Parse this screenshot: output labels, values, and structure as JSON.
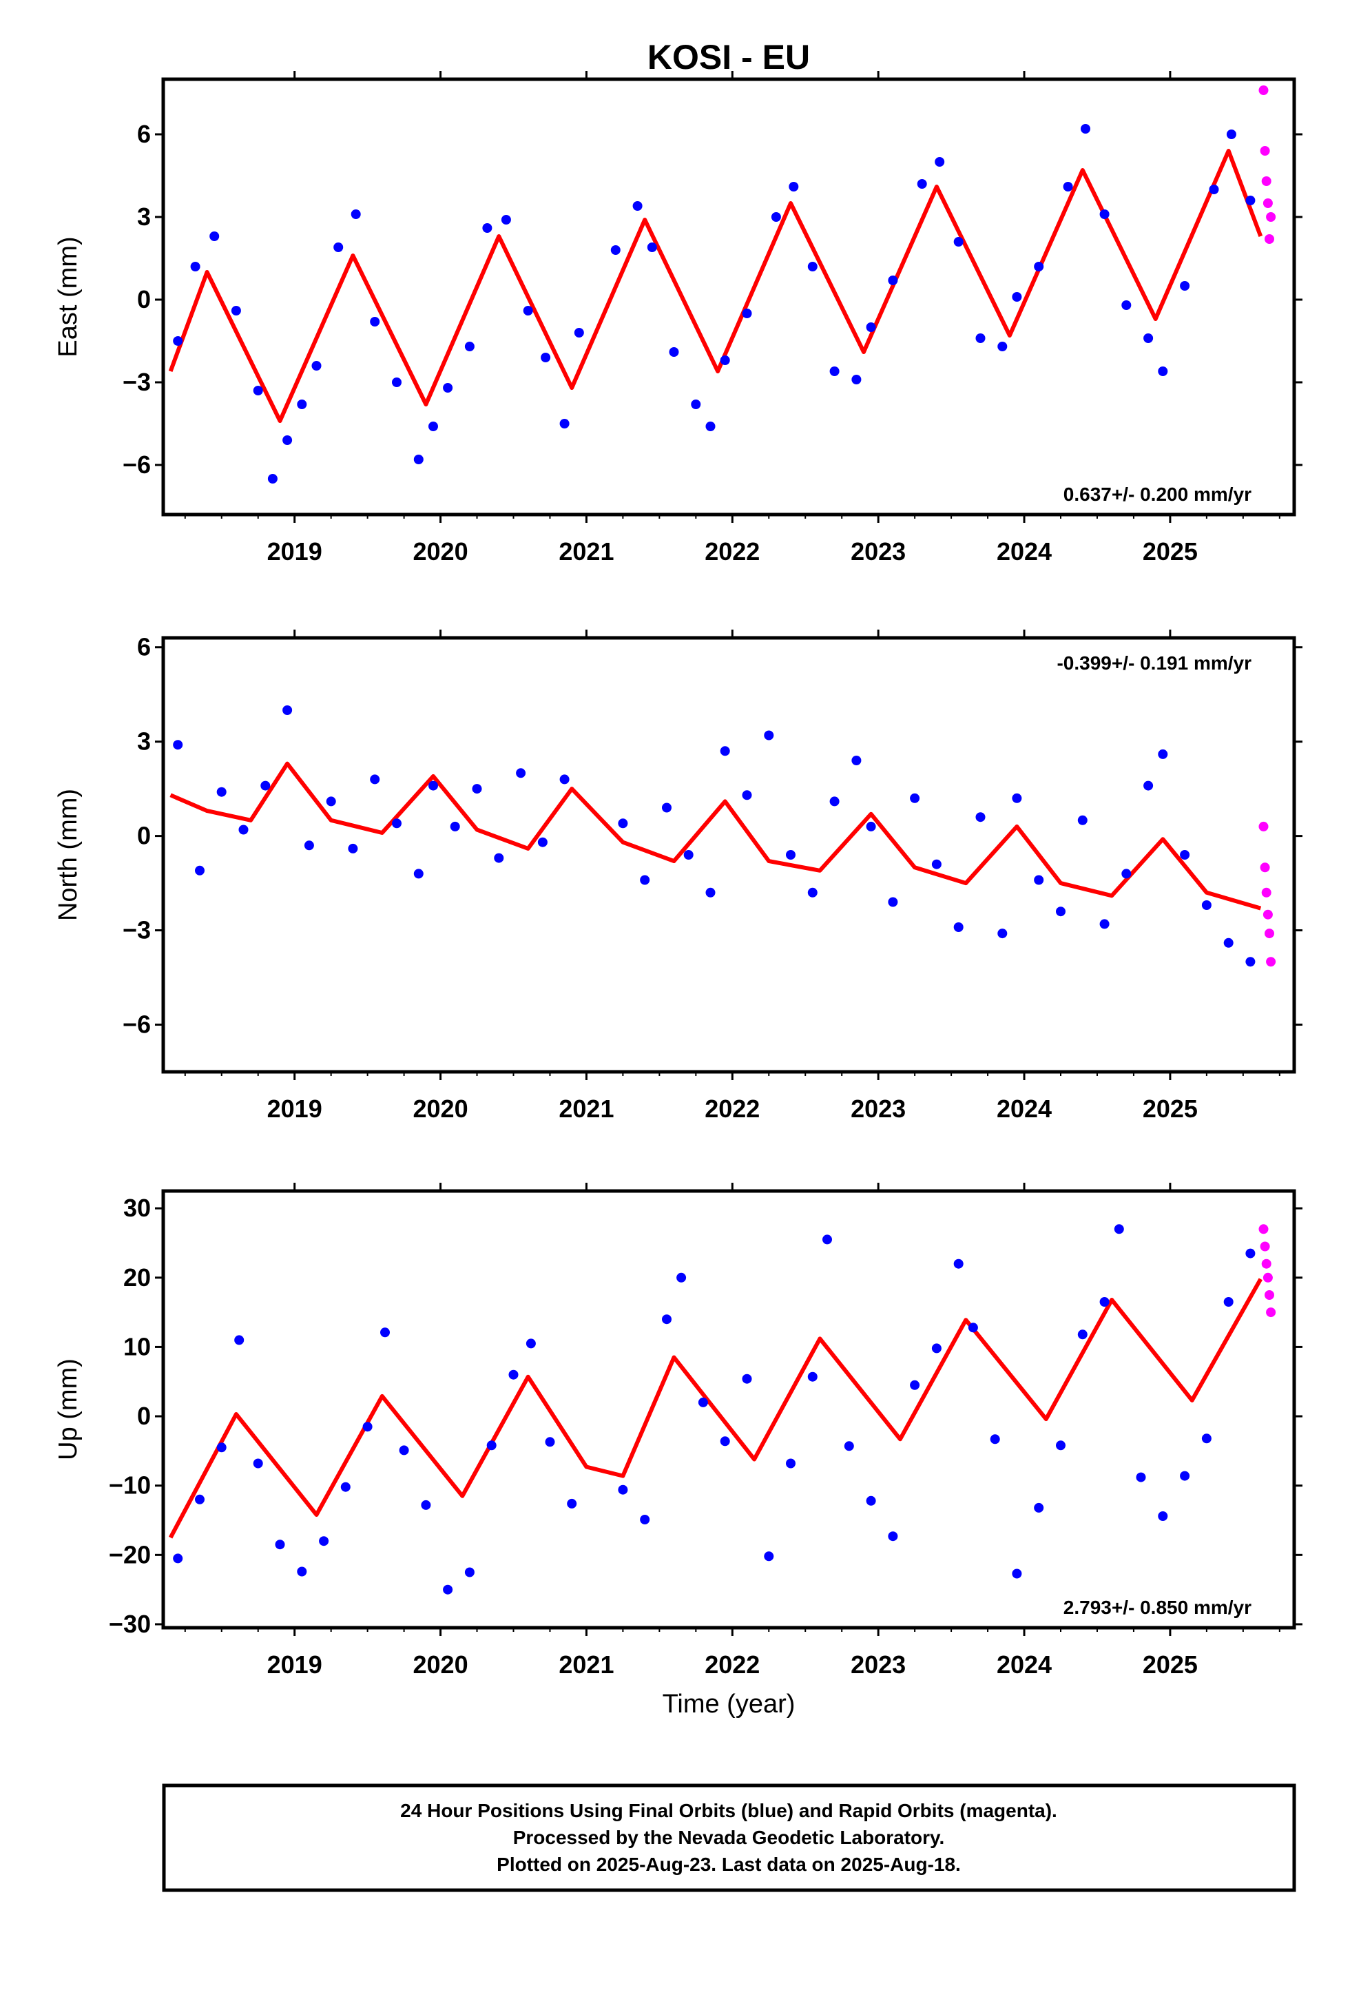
{
  "title": "KOSI - EU",
  "xlabel": "Time (year)",
  "caption": [
    "24 Hour Positions Using Final Orbits (blue) and Rapid Orbits (magenta).",
    "Processed by the Nevada Geodetic Laboratory.",
    "Plotted on 2025-Aug-23. Last data on 2025-Aug-18."
  ],
  "colors": {
    "final": "#0000ff",
    "rapid": "#ff00ff",
    "model": "#ff0000",
    "frame": "#000000"
  },
  "chart_data": [
    {
      "type": "scatter",
      "component": "east",
      "ylabel": "East (mm)",
      "rate": "0.637+/- 0.200 mm/yr",
      "rate_position": "bottom-right",
      "xlim": [
        2018.1,
        2025.85
      ],
      "ylim": [
        -7.8,
        8.0
      ],
      "x_ticks": [
        2019,
        2020,
        2021,
        2022,
        2023,
        2024,
        2025
      ],
      "y_ticks": [
        -6,
        -3,
        0,
        3,
        6
      ],
      "y_tick_labels": [
        "−6",
        "−3",
        "0",
        "3",
        "6"
      ],
      "series": [
        {
          "role": "model",
          "x": [
            2018.15,
            2018.4,
            2018.9,
            2019.4,
            2019.9,
            2020.4,
            2020.9,
            2021.4,
            2021.9,
            2022.4,
            2022.9,
            2023.4,
            2023.9,
            2024.4,
            2024.9,
            2025.4,
            2025.62
          ],
          "values": [
            -2.6,
            1.0,
            -4.4,
            1.6,
            -3.8,
            2.3,
            -3.2,
            2.9,
            -2.6,
            3.5,
            -1.9,
            4.1,
            -1.3,
            4.7,
            -0.7,
            5.4,
            2.3
          ]
        },
        {
          "role": "final",
          "x": [
            2018.2,
            2018.32,
            2018.45,
            2018.6,
            2018.75,
            2018.85,
            2018.95,
            2019.05,
            2019.15,
            2019.3,
            2019.42,
            2019.55,
            2019.7,
            2019.85,
            2019.95,
            2020.05,
            2020.2,
            2020.32,
            2020.45,
            2020.6,
            2020.72,
            2020.85,
            2020.95,
            2021.2,
            2021.35,
            2021.45,
            2021.6,
            2021.75,
            2021.85,
            2021.95,
            2022.1,
            2022.3,
            2022.42,
            2022.55,
            2022.7,
            2022.85,
            2022.95,
            2023.1,
            2023.3,
            2023.42,
            2023.55,
            2023.7,
            2023.85,
            2023.95,
            2024.1,
            2024.3,
            2024.42,
            2024.55,
            2024.7,
            2024.85,
            2024.95,
            2025.1,
            2025.3,
            2025.42,
            2025.55
          ],
          "values": [
            -1.5,
            1.2,
            2.3,
            -0.4,
            -3.3,
            -6.5,
            -5.1,
            -3.8,
            -2.4,
            1.9,
            3.1,
            -0.8,
            -3.0,
            -5.8,
            -4.6,
            -3.2,
            -1.7,
            2.6,
            2.9,
            -0.4,
            -2.1,
            -4.5,
            -1.2,
            1.8,
            3.4,
            1.9,
            -1.9,
            -3.8,
            -4.6,
            -2.2,
            -0.5,
            3.0,
            4.1,
            1.2,
            -2.6,
            -2.9,
            -1.0,
            0.7,
            4.2,
            5.0,
            2.1,
            -1.4,
            -1.7,
            0.1,
            1.2,
            4.1,
            6.2,
            3.1,
            -0.2,
            -1.4,
            -2.6,
            0.5,
            4.0,
            6.0,
            3.6
          ]
        },
        {
          "role": "rapid",
          "x": [
            2025.64,
            2025.65,
            2025.66,
            2025.67,
            2025.68,
            2025.69
          ],
          "values": [
            7.6,
            5.4,
            4.3,
            3.5,
            2.2,
            3.0
          ]
        }
      ]
    },
    {
      "type": "scatter",
      "component": "north",
      "ylabel": "North (mm)",
      "rate": "-0.399+/- 0.191 mm/yr",
      "rate_position": "top-right",
      "xlim": [
        2018.1,
        2025.85
      ],
      "ylim": [
        -7.5,
        6.3
      ],
      "x_ticks": [
        2019,
        2020,
        2021,
        2022,
        2023,
        2024,
        2025
      ],
      "y_ticks": [
        -6,
        -3,
        0,
        3,
        6
      ],
      "y_tick_labels": [
        "−6",
        "−3",
        "0",
        "3",
        "6"
      ],
      "series": [
        {
          "role": "model",
          "x": [
            2018.15,
            2018.4,
            2018.7,
            2018.95,
            2019.25,
            2019.6,
            2019.95,
            2020.25,
            2020.6,
            2020.9,
            2021.25,
            2021.6,
            2021.95,
            2022.25,
            2022.6,
            2022.95,
            2023.25,
            2023.6,
            2023.95,
            2024.25,
            2024.6,
            2024.95,
            2025.25,
            2025.62
          ],
          "values": [
            1.3,
            0.8,
            0.5,
            2.3,
            0.5,
            0.1,
            1.9,
            0.2,
            -0.4,
            1.5,
            -0.2,
            -0.8,
            1.1,
            -0.8,
            -1.1,
            0.7,
            -1.0,
            -1.5,
            0.3,
            -1.5,
            -1.9,
            -0.1,
            -1.8,
            -2.3
          ]
        },
        {
          "role": "final",
          "x": [
            2018.2,
            2018.35,
            2018.5,
            2018.65,
            2018.8,
            2018.95,
            2019.1,
            2019.25,
            2019.4,
            2019.55,
            2019.7,
            2019.85,
            2019.95,
            2020.1,
            2020.25,
            2020.4,
            2020.55,
            2020.7,
            2020.85,
            2021.25,
            2021.4,
            2021.55,
            2021.7,
            2021.85,
            2021.95,
            2022.1,
            2022.25,
            2022.4,
            2022.55,
            2022.7,
            2022.85,
            2022.95,
            2023.1,
            2023.25,
            2023.4,
            2023.55,
            2023.7,
            2023.85,
            2023.95,
            2024.1,
            2024.25,
            2024.4,
            2024.55,
            2024.7,
            2024.85,
            2024.95,
            2025.1,
            2025.25,
            2025.4,
            2025.55
          ],
          "values": [
            2.9,
            -1.1,
            1.4,
            0.2,
            1.6,
            4.0,
            -0.3,
            1.1,
            -0.4,
            1.8,
            0.4,
            -1.2,
            1.6,
            0.3,
            1.5,
            -0.7,
            2.0,
            -0.2,
            1.8,
            0.4,
            -1.4,
            0.9,
            -0.6,
            -1.8,
            2.7,
            1.3,
            3.2,
            -0.6,
            -1.8,
            1.1,
            2.4,
            0.3,
            -2.1,
            1.2,
            -0.9,
            -2.9,
            0.6,
            -3.1,
            1.2,
            -1.4,
            -2.4,
            0.5,
            -2.8,
            -1.2,
            1.6,
            2.6,
            -0.6,
            -2.2,
            -3.4,
            -4.0
          ]
        },
        {
          "role": "rapid",
          "x": [
            2025.64,
            2025.65,
            2025.66,
            2025.67,
            2025.68,
            2025.69
          ],
          "values": [
            0.3,
            -1.0,
            -1.8,
            -2.5,
            -3.1,
            -4.0
          ]
        }
      ]
    },
    {
      "type": "scatter",
      "component": "up",
      "ylabel": "Up (mm)",
      "rate": "2.793+/- 0.850 mm/yr",
      "rate_position": "bottom-right",
      "xlim": [
        2018.1,
        2025.85
      ],
      "ylim": [
        -30.5,
        32.5
      ],
      "x_ticks": [
        2019,
        2020,
        2021,
        2022,
        2023,
        2024,
        2025
      ],
      "x_tick_labels": [
        "2019",
        "2020",
        "2021",
        "2022",
        "2023",
        "2024",
        "2025"
      ],
      "y_ticks": [
        -30,
        -20,
        -10,
        0,
        10,
        20,
        30
      ],
      "y_tick_labels": [
        "−30",
        "−20",
        "−10",
        "0",
        "10",
        "20",
        "30"
      ],
      "series": [
        {
          "role": "model",
          "x": [
            2018.15,
            2018.6,
            2019.15,
            2019.6,
            2020.15,
            2020.6,
            2021.0,
            2021.25,
            2021.6,
            2022.15,
            2022.6,
            2023.15,
            2023.6,
            2024.15,
            2024.6,
            2025.15,
            2025.62
          ],
          "values": [
            -17.5,
            0.3,
            -14.2,
            2.9,
            -11.5,
            5.7,
            -7.3,
            -8.6,
            8.5,
            -6.2,
            11.2,
            -3.3,
            13.9,
            -0.4,
            16.8,
            2.3,
            19.8
          ]
        },
        {
          "role": "final",
          "x": [
            2018.2,
            2018.35,
            2018.5,
            2018.62,
            2018.75,
            2018.9,
            2019.05,
            2019.2,
            2019.35,
            2019.5,
            2019.62,
            2019.75,
            2019.9,
            2020.05,
            2020.2,
            2020.35,
            2020.5,
            2020.62,
            2020.75,
            2020.9,
            2021.25,
            2021.4,
            2021.55,
            2021.65,
            2021.8,
            2021.95,
            2022.1,
            2022.25,
            2022.4,
            2022.55,
            2022.65,
            2022.8,
            2022.95,
            2023.1,
            2023.25,
            2023.4,
            2023.55,
            2023.65,
            2023.8,
            2023.95,
            2024.1,
            2024.25,
            2024.4,
            2024.55,
            2024.65,
            2024.8,
            2024.95,
            2025.1,
            2025.25,
            2025.4,
            2025.55
          ],
          "values": [
            -20.5,
            -12.0,
            -4.5,
            11.0,
            -6.8,
            -18.5,
            -22.4,
            -18.0,
            -10.2,
            -1.5,
            12.1,
            -4.9,
            -12.8,
            -25.0,
            -22.5,
            -4.2,
            6.0,
            10.5,
            -3.7,
            -12.6,
            -10.6,
            -14.9,
            14.0,
            20.0,
            2.0,
            -3.6,
            5.4,
            -20.2,
            -6.8,
            5.7,
            25.5,
            -4.3,
            -12.2,
            -17.3,
            4.5,
            9.8,
            22.0,
            12.8,
            -3.3,
            -22.7,
            -13.2,
            -4.2,
            11.8,
            16.5,
            27.0,
            -8.8,
            -14.4,
            -8.6,
            -3.2,
            16.5,
            23.5
          ]
        },
        {
          "role": "rapid",
          "x": [
            2025.64,
            2025.65,
            2025.66,
            2025.67,
            2025.68,
            2025.69
          ],
          "values": [
            27.0,
            24.5,
            22.0,
            20.0,
            17.5,
            15.0
          ]
        }
      ]
    }
  ]
}
